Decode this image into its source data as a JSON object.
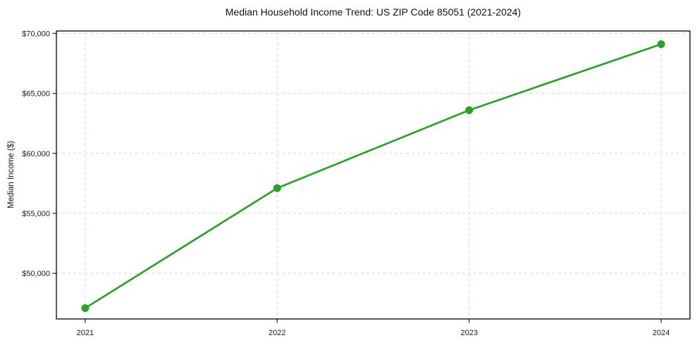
{
  "figure": {
    "title": "Median Household Income Trend: US ZIP Code 85051 (2021-2024)"
  },
  "chart_data": {
    "type": "line",
    "title": "Median Household Income Trend: US ZIP Code 85051 (2021-2024)",
    "xlabel": "",
    "ylabel": "Median Income ($)",
    "categories": [
      "2021",
      "2022",
      "2023",
      "2024"
    ],
    "series": [
      {
        "name": "Median Household Income",
        "values": [
          47100,
          57100,
          63600,
          69100
        ],
        "color": "#2ca02c",
        "marker": "circle",
        "marker_radius": 5.5,
        "line_width": 2.7
      }
    ],
    "y_ticks": [
      {
        "value": 50000,
        "label": "$50,000"
      },
      {
        "value": 55000,
        "label": "$55,000"
      },
      {
        "value": 60000,
        "label": "$60,000"
      },
      {
        "value": 65000,
        "label": "$65,000"
      },
      {
        "value": 70000,
        "label": "$70,000"
      }
    ],
    "ylim": [
      46200,
      70200
    ],
    "xlim_padding": 0.15,
    "grid": "dashed",
    "grid_color": "#d6d6d6",
    "axis_color": "#000000",
    "tick_color": "#222222",
    "text_color": "#1a1a1a",
    "background": "#ffffff",
    "legend": "none"
  }
}
